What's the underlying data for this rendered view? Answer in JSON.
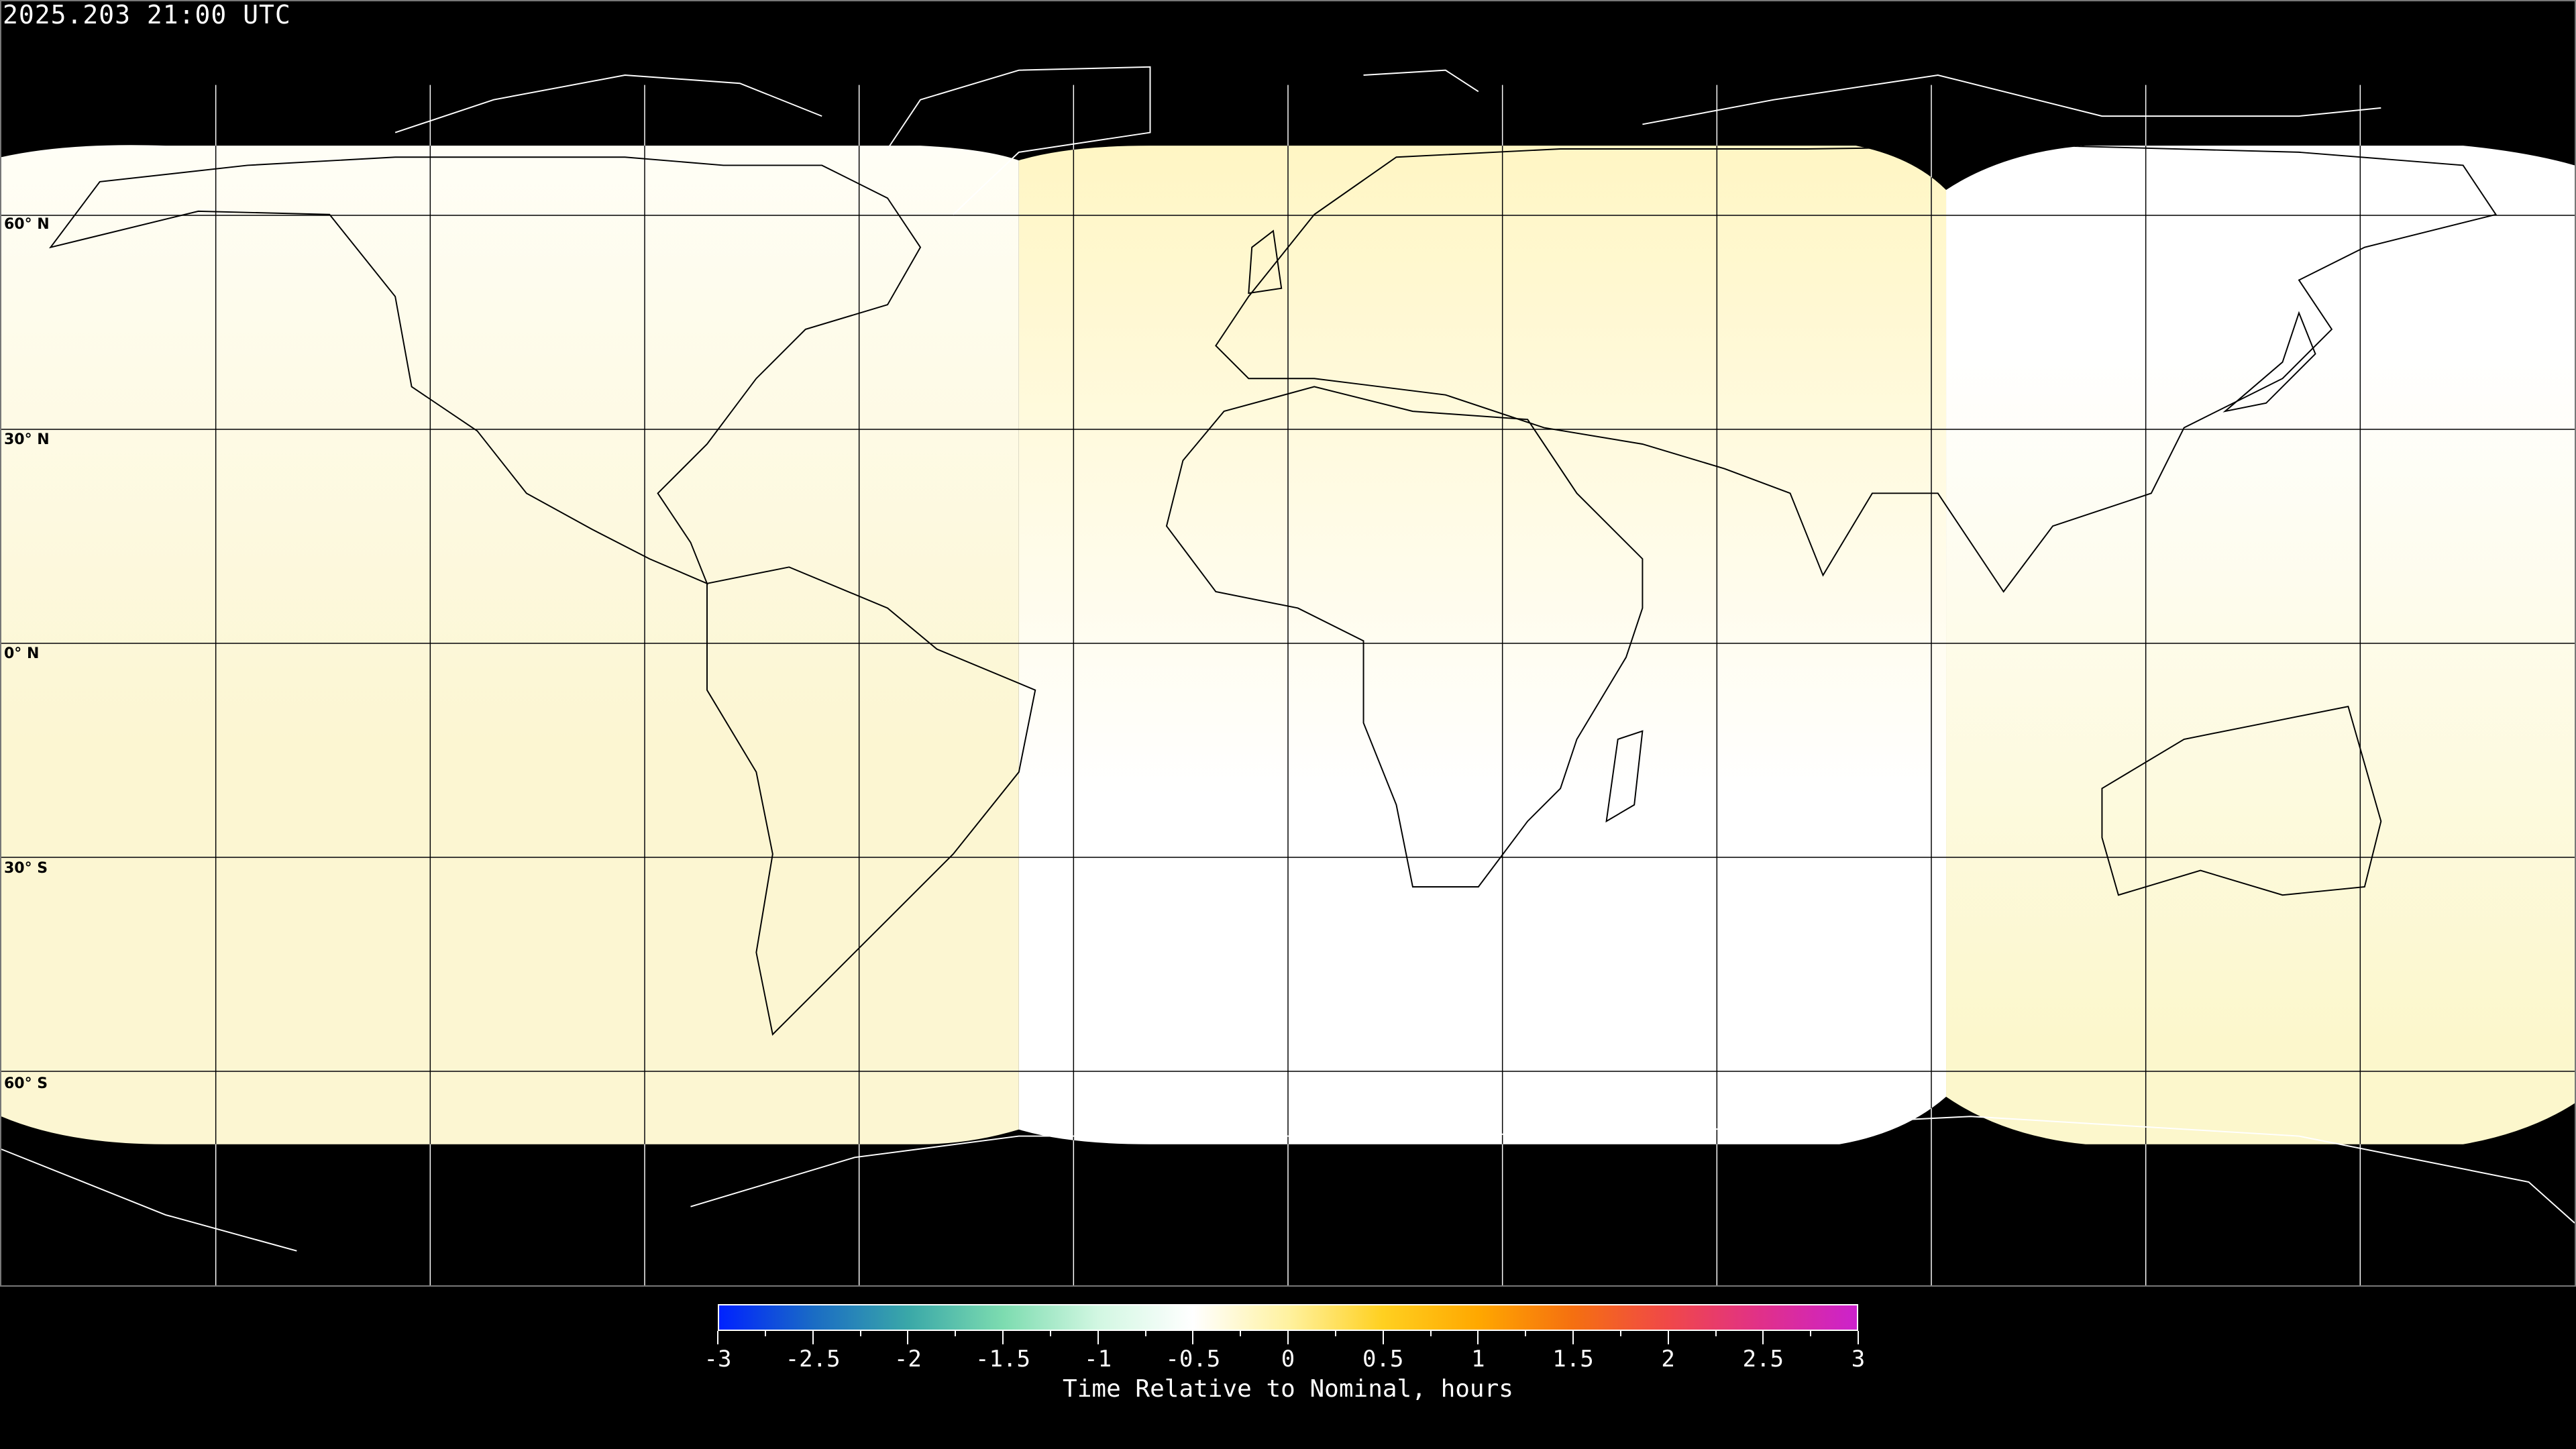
{
  "title": "2025.203 21:00 UTC",
  "latitude_labels": [
    "60° N",
    "30° N",
    "0° N",
    "30° S",
    "60° S"
  ],
  "colorbar": {
    "label": "Time Relative to Nominal, hours",
    "range": [
      -3,
      3
    ],
    "tick_labels": [
      "-3",
      "-2.5",
      "-2",
      "-1.5",
      "-1",
      "-0.5",
      "0",
      "0.5",
      "1",
      "1.5",
      "2",
      "2.5",
      "3"
    ],
    "colors": [
      "#0022ff",
      "#1a6cc4",
      "#3aa8a8",
      "#7ddcb0",
      "#d2f7e2",
      "#ffffff",
      "#fff2a0",
      "#ffd020",
      "#ffa800",
      "#f57010",
      "#f04848",
      "#e0308a",
      "#cc22cc"
    ]
  },
  "map": {
    "projection": "equirectangular",
    "no_data_color": "#000000",
    "segment_colors": {
      "west": [
        "#fffef6",
        "#fcf6d2"
      ],
      "central": [
        "#fff6c4",
        "#ffffff"
      ],
      "east": [
        "#ffffff",
        "#fcf7cc"
      ]
    }
  }
}
